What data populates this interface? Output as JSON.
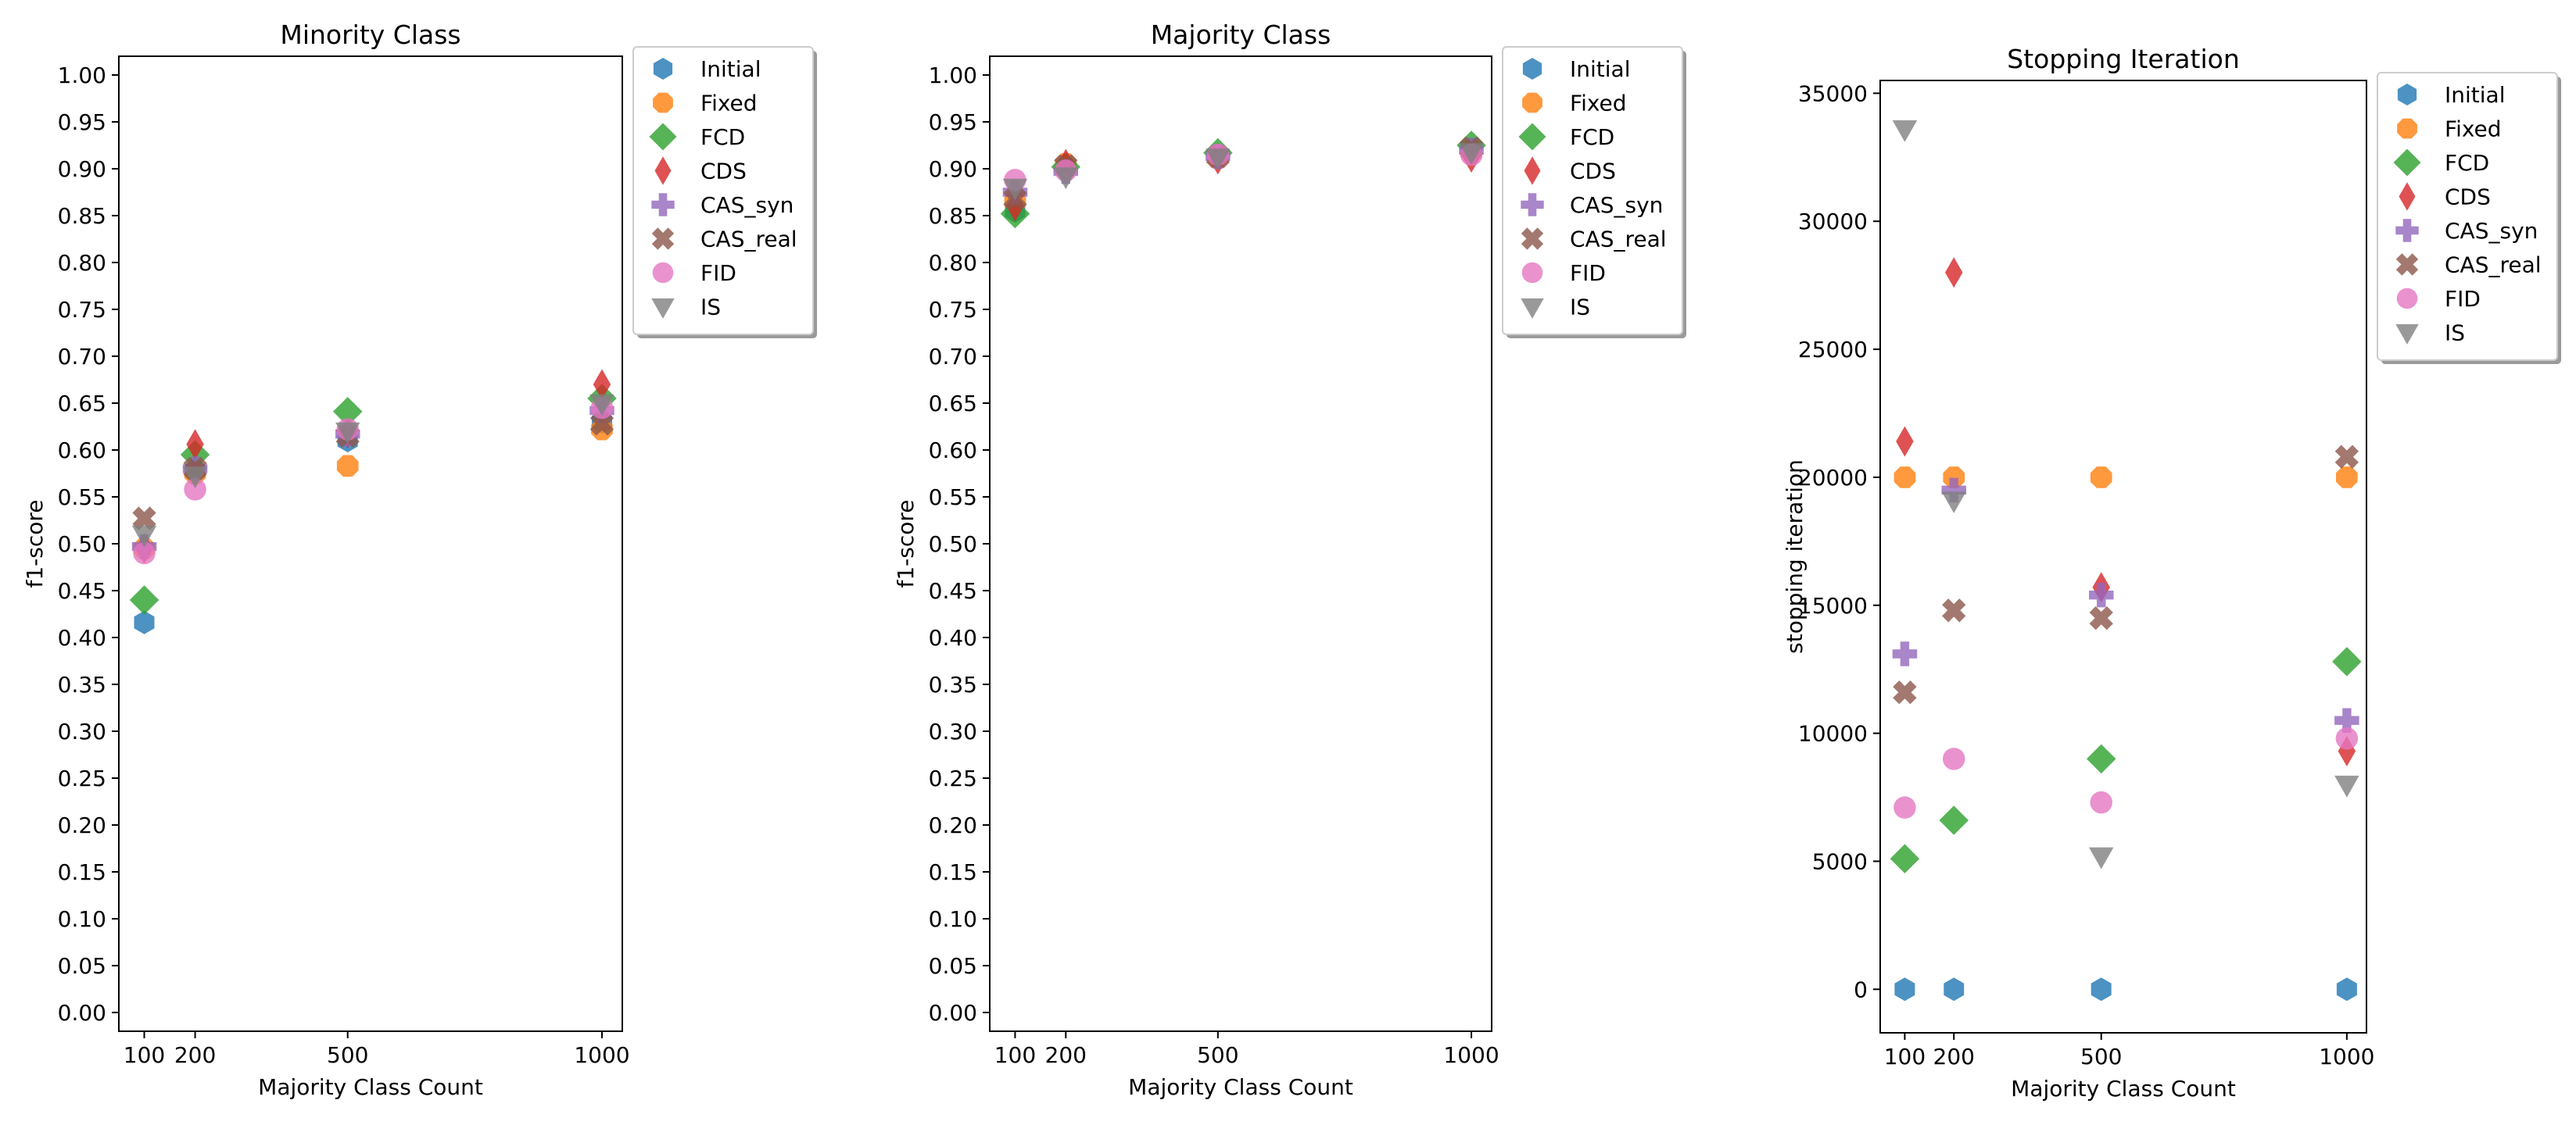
{
  "chart_data": [
    {
      "type": "scatter",
      "title": "Minority Class",
      "xlabel": "Majority Class Count",
      "ylabel": "f1-score",
      "xlim": [
        50,
        1040
      ],
      "ylim": [
        -0.02,
        1.02
      ],
      "xticks": [
        100,
        200,
        500,
        1000
      ],
      "xtick_labels": [
        "100",
        "200",
        "500",
        "1000"
      ],
      "yticks": [
        0.0,
        0.05,
        0.1,
        0.15,
        0.2,
        0.25,
        0.3,
        0.35,
        0.4,
        0.45,
        0.5,
        0.55,
        0.6,
        0.65,
        0.7,
        0.75,
        0.8,
        0.85,
        0.9,
        0.95,
        1.0
      ],
      "ytick_labels": [
        "0.00",
        "0.05",
        "0.10",
        "0.15",
        "0.20",
        "0.25",
        "0.30",
        "0.35",
        "0.40",
        "0.45",
        "0.50",
        "0.55",
        "0.60",
        "0.65",
        "0.70",
        "0.75",
        "0.80",
        "0.85",
        "0.90",
        "0.95",
        "1.00"
      ],
      "legend": "outside-right-top",
      "grid": false,
      "series": [
        {
          "name": "Initial",
          "x": [
            100,
            200,
            500,
            1000
          ],
          "values": [
            0.416,
            0.578,
            0.61,
            0.63
          ]
        },
        {
          "name": "Fixed",
          "x": [
            100,
            200,
            500,
            1000
          ],
          "values": [
            0.495,
            0.575,
            0.583,
            0.622
          ]
        },
        {
          "name": "FCD",
          "x": [
            100,
            200,
            500,
            1000
          ],
          "values": [
            0.44,
            0.595,
            0.641,
            0.655
          ]
        },
        {
          "name": "CDS",
          "x": [
            100,
            200,
            500,
            1000
          ],
          "values": [
            0.495,
            0.606,
            0.618,
            0.67
          ]
        },
        {
          "name": "CAS_syn",
          "x": [
            100,
            200,
            500,
            1000
          ],
          "values": [
            0.497,
            0.58,
            0.617,
            0.642
          ]
        },
        {
          "name": "CAS_real",
          "x": [
            100,
            200,
            500,
            1000
          ],
          "values": [
            0.527,
            0.58,
            0.615,
            0.628
          ]
        },
        {
          "name": "FID",
          "x": [
            100,
            200,
            500,
            1000
          ],
          "values": [
            0.49,
            0.558,
            0.622,
            0.645
          ]
        },
        {
          "name": "IS",
          "x": [
            100,
            200,
            500,
            1000
          ],
          "values": [
            0.51,
            0.573,
            0.62,
            0.65
          ]
        }
      ]
    },
    {
      "type": "scatter",
      "title": "Majority Class",
      "xlabel": "Majority Class Count",
      "ylabel": "f1-score",
      "xlim": [
        50,
        1040
      ],
      "ylim": [
        -0.02,
        1.02
      ],
      "xticks": [
        100,
        200,
        500,
        1000
      ],
      "xtick_labels": [
        "100",
        "200",
        "500",
        "1000"
      ],
      "yticks": [
        0.0,
        0.05,
        0.1,
        0.15,
        0.2,
        0.25,
        0.3,
        0.35,
        0.4,
        0.45,
        0.5,
        0.55,
        0.6,
        0.65,
        0.7,
        0.75,
        0.8,
        0.85,
        0.9,
        0.95,
        1.0
      ],
      "ytick_labels": [
        "0.00",
        "0.05",
        "0.10",
        "0.15",
        "0.20",
        "0.25",
        "0.30",
        "0.35",
        "0.40",
        "0.45",
        "0.50",
        "0.55",
        "0.60",
        "0.65",
        "0.70",
        "0.75",
        "0.80",
        "0.85",
        "0.90",
        "0.95",
        "1.00"
      ],
      "legend": "outside-right-top",
      "grid": false,
      "series": [
        {
          "name": "Initial",
          "x": [
            100,
            200,
            500,
            1000
          ],
          "values": [
            0.855,
            0.9,
            0.915,
            0.92
          ]
        },
        {
          "name": "Fixed",
          "x": [
            100,
            200,
            500,
            1000
          ],
          "values": [
            0.865,
            0.905,
            0.912,
            0.918
          ]
        },
        {
          "name": "FCD",
          "x": [
            100,
            200,
            500,
            1000
          ],
          "values": [
            0.852,
            0.902,
            0.917,
            0.925
          ]
        },
        {
          "name": "CDS",
          "x": [
            100,
            200,
            500,
            1000
          ],
          "values": [
            0.86,
            0.905,
            0.91,
            0.912
          ]
        },
        {
          "name": "CAS_syn",
          "x": [
            100,
            200,
            500,
            1000
          ],
          "values": [
            0.875,
            0.897,
            0.913,
            0.92
          ]
        },
        {
          "name": "CAS_real",
          "x": [
            100,
            200,
            500,
            1000
          ],
          "values": [
            0.868,
            0.903,
            0.913,
            0.922
          ]
        },
        {
          "name": "FID",
          "x": [
            100,
            200,
            500,
            1000
          ],
          "values": [
            0.888,
            0.898,
            0.915,
            0.915
          ]
        },
        {
          "name": "IS",
          "x": [
            100,
            200,
            500,
            1000
          ],
          "values": [
            0.88,
            0.892,
            0.912,
            0.918
          ]
        }
      ]
    },
    {
      "type": "scatter",
      "title": "Stopping Iteration",
      "xlabel": "Majority Class Count",
      "ylabel": "stopping iteration",
      "xlim": [
        50,
        1040
      ],
      "ylim": [
        -1700,
        35500
      ],
      "xticks": [
        100,
        200,
        500,
        1000
      ],
      "xtick_labels": [
        "100",
        "200",
        "500",
        "1000"
      ],
      "yticks": [
        0,
        5000,
        10000,
        15000,
        20000,
        25000,
        30000,
        35000
      ],
      "ytick_labels": [
        "0",
        "5000",
        "10000",
        "15000",
        "20000",
        "25000",
        "30000",
        "35000"
      ],
      "legend": "outside-right-top",
      "grid": false,
      "series": [
        {
          "name": "Initial",
          "x": [
            100,
            200,
            500,
            1000
          ],
          "values": [
            0,
            0,
            0,
            0
          ]
        },
        {
          "name": "Fixed",
          "x": [
            100,
            200,
            500,
            1000
          ],
          "values": [
            20000,
            20000,
            20000,
            20000
          ]
        },
        {
          "name": "FCD",
          "x": [
            100,
            200,
            500,
            1000
          ],
          "values": [
            5100,
            6600,
            9000,
            12800
          ]
        },
        {
          "name": "CDS",
          "x": [
            100,
            200,
            500,
            1000
          ],
          "values": [
            21400,
            28000,
            15700,
            9300
          ]
        },
        {
          "name": "CAS_syn",
          "x": [
            100,
            200,
            500,
            1000
          ],
          "values": [
            13100,
            19500,
            15400,
            10500
          ]
        },
        {
          "name": "CAS_real",
          "x": [
            100,
            200,
            500,
            1000
          ],
          "values": [
            11600,
            14800,
            14500,
            20800
          ]
        },
        {
          "name": "FID",
          "x": [
            100,
            200,
            500,
            1000
          ],
          "values": [
            7100,
            9000,
            7300,
            9800
          ]
        },
        {
          "name": "IS",
          "x": [
            100,
            200,
            500,
            1000
          ],
          "values": [
            33600,
            19100,
            5200,
            8000
          ]
        }
      ]
    }
  ],
  "style": {
    "series_colors": [
      "#1f77b4",
      "#ff7f0e",
      "#2ca02c",
      "#d62728",
      "#9467bd",
      "#8c564b",
      "#e377c2",
      "#7f7f7f"
    ],
    "series_markers": [
      "hexagon",
      "octagon",
      "diamond",
      "thin-diamond",
      "plus-filled",
      "x-filled",
      "circle",
      "triangle-down"
    ]
  }
}
